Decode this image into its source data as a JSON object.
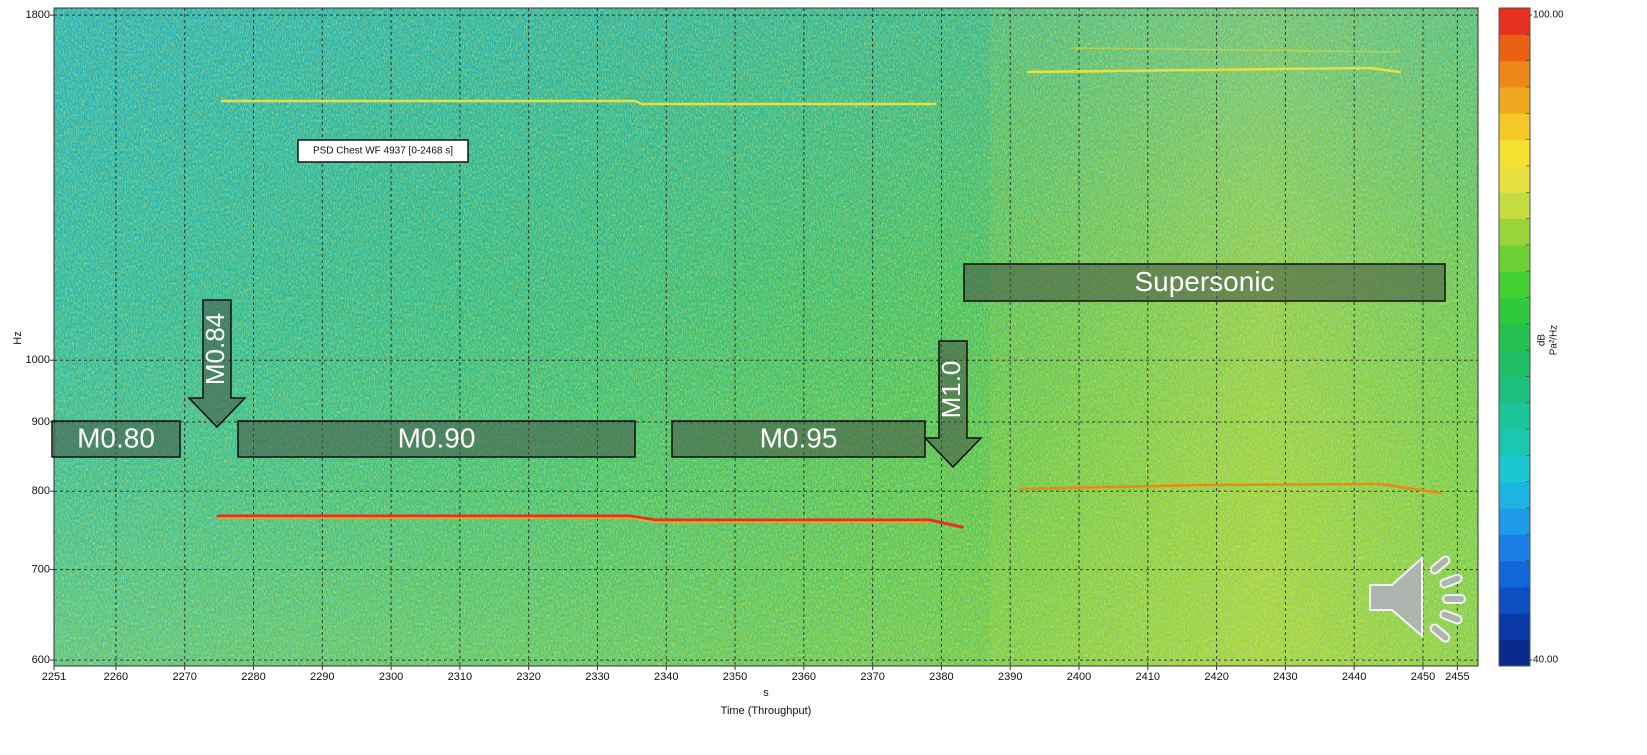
{
  "chart_data": {
    "type": "spectrogram",
    "title": "PSD Chest WF 4937 [0-2468 s]",
    "xlabel": "Time (Throughput)",
    "xunit": "s",
    "ylabel": "Hz",
    "xlim": [
      2251,
      2458
    ],
    "xticks": [
      2251,
      2260,
      2270,
      2280,
      2290,
      2300,
      2310,
      2320,
      2330,
      2340,
      2350,
      2360,
      2370,
      2380,
      2390,
      2400,
      2410,
      2420,
      2430,
      2440,
      2450,
      2455
    ],
    "ylim": [
      594,
      1822
    ],
    "yticks": [
      600,
      700,
      800,
      900,
      1000,
      1800
    ],
    "yscale": "log",
    "grid": true,
    "colorbar": {
      "label": "dB",
      "unit": "Pa²/Hz",
      "lim": [
        40,
        100
      ],
      "ticks": [
        {
          "value": 40,
          "label": "40.00"
        },
        {
          "value": 100,
          "label": "100.00"
        }
      ],
      "colors": [
        "#0a2a8c",
        "#0b3aa8",
        "#0d4fc0",
        "#1166d8",
        "#1a80e8",
        "#1d9ae8",
        "#1eb4e0",
        "#1cc8d0",
        "#1ac8b0",
        "#1cc49a",
        "#1ec080",
        "#20bc66",
        "#24c050",
        "#30c83c",
        "#44d030",
        "#6cd034",
        "#98d43a",
        "#c4dc40",
        "#e8e040",
        "#f4e030",
        "#f4c828",
        "#f0a820",
        "#ec8818",
        "#e86010",
        "#e83020"
      ]
    },
    "annotations": [
      "M0.80",
      "M0.84",
      "M0.90",
      "M0.95",
      "M1.0",
      "Supersonic"
    ]
  }
}
